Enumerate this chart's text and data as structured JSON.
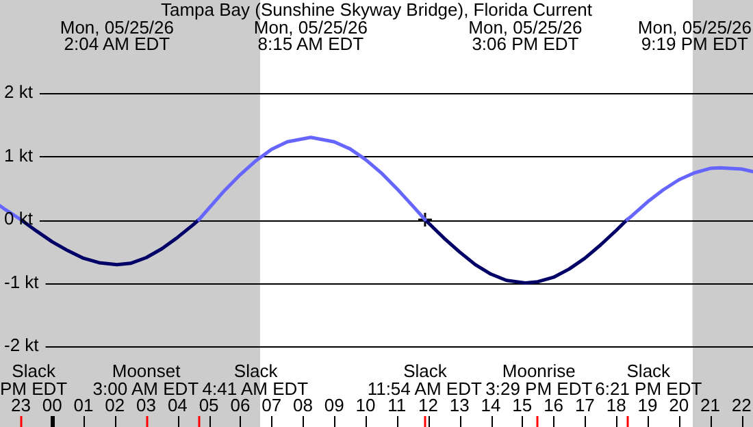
{
  "chart_data": {
    "type": "line",
    "title": "Tampa Bay (Sunshine Skyway Bridge), Florida Current",
    "x": [
      "--05-24T22:20",
      "--05-24T22:30",
      "--05-24T23:00",
      "--05-24T23:30",
      "--05-25T00:00",
      "--05-25T00:30",
      "--05-25T01:00",
      "--05-25T01:30",
      "--05-25T02:04",
      "--05-25T02:30",
      "--05-25T03:00",
      "--05-25T03:30",
      "--05-25T04:00",
      "--05-25T04:30",
      "--05-25T04:41",
      "--05-25T05:00",
      "--05-25T05:30",
      "--05-25T06:00",
      "--05-25T06:30",
      "--05-25T07:00",
      "--05-25T07:30",
      "--05-25T08:15",
      "--05-25T09:00",
      "--05-25T09:30",
      "--05-25T10:00",
      "--05-25T10:30",
      "--05-25T11:00",
      "--05-25T11:30",
      "--05-25T11:54",
      "--05-25T12:30",
      "--05-25T13:00",
      "--05-25T13:30",
      "--05-25T14:00",
      "--05-25T14:30",
      "--05-25T15:06",
      "--05-25T15:30",
      "--05-25T16:00",
      "--05-25T16:30",
      "--05-25T17:00",
      "--05-25T17:30",
      "--05-25T18:00",
      "--05-25T18:21",
      "--05-25T18:30",
      "--05-25T19:00",
      "--05-25T19:30",
      "--05-25T20:00",
      "--05-25T20:30",
      "--05-25T21:00",
      "--05-25T21:19",
      "--05-25T22:00",
      "--05-25T22:22"
    ],
    "series": [
      {
        "color": "#6666ff",
        "values": [
          0.22,
          0.16,
          0,
          null,
          null,
          null,
          null,
          null,
          null,
          null,
          null,
          null,
          null,
          null,
          0,
          0.18,
          0.46,
          0.71,
          0.93,
          1.11,
          1.23,
          1.3,
          1.23,
          1.12,
          0.95,
          0.74,
          0.49,
          0.22,
          0,
          null,
          null,
          null,
          null,
          null,
          null,
          null,
          null,
          null,
          null,
          null,
          null,
          0,
          0.06,
          0.28,
          0.47,
          0.63,
          0.74,
          0.81,
          0.82,
          0.8,
          0.76
        ]
      },
      {
        "color": "#000066",
        "values": [
          null,
          null,
          0,
          -0.18,
          -0.35,
          -0.49,
          -0.61,
          -0.68,
          -0.71,
          -0.69,
          -0.6,
          -0.46,
          -0.28,
          -0.08,
          0,
          null,
          null,
          null,
          null,
          null,
          null,
          null,
          null,
          null,
          null,
          null,
          null,
          null,
          0,
          -0.29,
          -0.51,
          -0.71,
          -0.86,
          -0.96,
          -1.0,
          -0.98,
          -0.91,
          -0.78,
          -0.61,
          -0.4,
          -0.17,
          0,
          null,
          null,
          null,
          null,
          null,
          null,
          null,
          null,
          null
        ]
      },
      {
        "type": "scatter",
        "marker": "cross",
        "color": "#000000",
        "x": [
          "--05-25T11:54"
        ],
        "values": [
          0
        ]
      }
    ],
    "marker": "none",
    "line_style": "solid",
    "grid": "y",
    "legend": false,
    "xlim": [
      "--05-24T22:20",
      "--05-25T22:22"
    ],
    "xticks": [
      {
        "value": "--05-24T23:00",
        "label": "23"
      },
      {
        "value": "--05-25T00:00",
        "label": "00"
      },
      {
        "value": "--05-25T01:00",
        "label": "01"
      },
      {
        "value": "--05-25T02:00",
        "label": "02"
      },
      {
        "value": "--05-25T03:00",
        "label": "03"
      },
      {
        "value": "--05-25T04:00",
        "label": "04"
      },
      {
        "value": "--05-25T05:00",
        "label": "05"
      },
      {
        "value": "--05-25T06:00",
        "label": "06"
      },
      {
        "value": "--05-25T07:00",
        "label": "07"
      },
      {
        "value": "--05-25T08:00",
        "label": "08"
      },
      {
        "value": "--05-25T09:00",
        "label": "09"
      },
      {
        "value": "--05-25T10:00",
        "label": "10"
      },
      {
        "value": "--05-25T11:00",
        "label": "11"
      },
      {
        "value": "--05-25T12:00",
        "label": "12"
      },
      {
        "value": "--05-25T13:00",
        "label": "13"
      },
      {
        "value": "--05-25T14:00",
        "label": "14"
      },
      {
        "value": "--05-25T15:00",
        "label": "15"
      },
      {
        "value": "--05-25T16:00",
        "label": "16"
      },
      {
        "value": "--05-25T17:00",
        "label": "17"
      },
      {
        "value": "--05-25T18:00",
        "label": "18"
      },
      {
        "value": "--05-25T19:00",
        "label": "19"
      },
      {
        "value": "--05-25T20:00",
        "label": "20"
      },
      {
        "value": "--05-25T21:00",
        "label": "21"
      },
      {
        "value": "--05-25T22:00",
        "label": "22"
      }
    ],
    "ylim": [
      -2,
      2
    ],
    "yticks": [
      {
        "value": -2,
        "label": "-2 kt"
      },
      {
        "value": -1,
        "label": "-1 kt"
      },
      {
        "value": 0,
        "label": "0 kt"
      },
      {
        "value": 1,
        "label": "1 kt"
      },
      {
        "value": 2,
        "label": "2 kt"
      }
    ],
    "bands": [
      {
        "axis": "x",
        "from": "--05-24T22:20",
        "to": "--05-25T06:38",
        "color": "#cccccc"
      },
      {
        "axis": "x",
        "from": "--05-25T20:26",
        "to": "--05-25T22:22",
        "color": "#cccccc"
      }
    ],
    "ref_lines": [
      {
        "axis": "x",
        "value": "--05-24T23:00",
        "label": "Slack\nPM EDT",
        "color": "#ff0000"
      },
      {
        "axis": "x",
        "value": "--05-25T03:00",
        "label": "Moonset\n3:00 AM EDT",
        "color": "#ff0000"
      },
      {
        "axis": "x",
        "value": "--05-25T04:41",
        "label": "Slack\n4:41 AM EDT",
        "color": "#ff0000"
      },
      {
        "axis": "x",
        "value": "--05-25T11:54",
        "label": "Slack\n11:54 AM EDT",
        "color": "#ff0000"
      },
      {
        "axis": "x",
        "value": "--05-25T15:29",
        "label": "Moonrise\n3:29 PM EDT",
        "color": "#ff0000"
      },
      {
        "axis": "x",
        "value": "--05-25T18:21",
        "label": "Slack\n6:21 PM EDT",
        "color": "#ff0000"
      }
    ],
    "annotations": [
      "Mon, 05/25/26\n2:04 AM EDT",
      "Mon, 05/25/26\n8:15 AM EDT",
      "Mon, 05/25/26\n3:06 PM EDT",
      "Mon, 05/25/26\n9:19 PM EDT"
    ]
  }
}
